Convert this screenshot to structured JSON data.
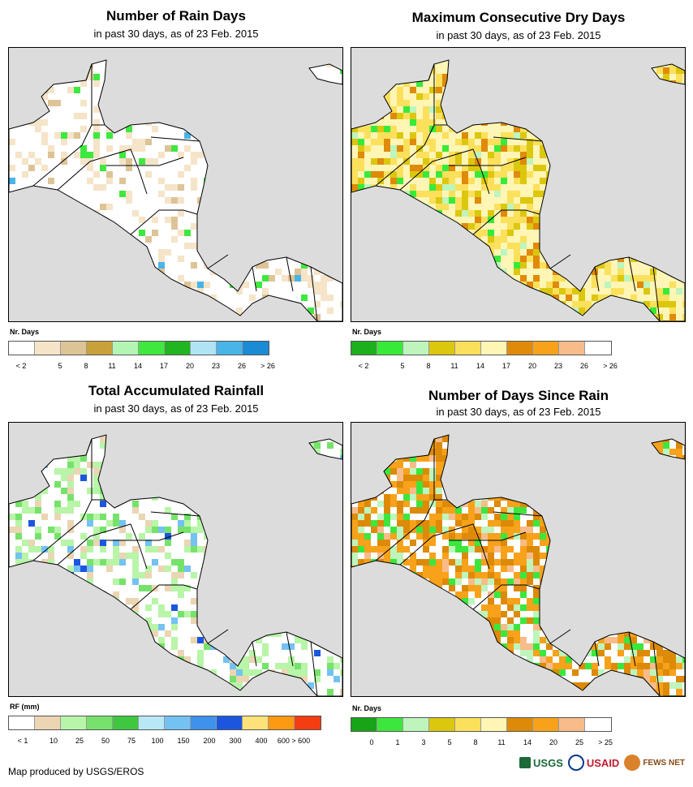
{
  "panels": [
    {
      "id": "rain-days",
      "title": "Number of Rain Days",
      "subtitle": "in past 30 days, as of 23 Feb. 2015",
      "legend_title": "Nr. Days",
      "legend_colors": [
        "#ffffff",
        "#f5e4c8",
        "#ddc497",
        "#c9a13a",
        "#b3f5b3",
        "#3fe83f",
        "#21b521",
        "#b0e4f5",
        "#49b4e7",
        "#1a8bd4"
      ],
      "legend_labels": [
        "< 2",
        "5",
        "8",
        "11",
        "14",
        "17",
        "20",
        "23",
        "26",
        "> 26"
      ],
      "scheme": "rain"
    },
    {
      "id": "dry-days",
      "title": "Maximum Consecutive Dry Days",
      "subtitle": "in past 30 days, as of 23 Feb. 2015",
      "legend_title": "Nr. Days",
      "legend_colors": [
        "#1db01d",
        "#38ea38",
        "#bdf5bd",
        "#dcc70f",
        "#fbe05c",
        "#fff5b5",
        "#e08a0a",
        "#f7a21a",
        "#f8bc8a",
        "#ffffff"
      ],
      "legend_labels": [
        "< 2",
        "5",
        "8",
        "11",
        "14",
        "17",
        "20",
        "23",
        "26",
        "> 26"
      ],
      "scheme": "dry"
    },
    {
      "id": "rainfall",
      "title": "Total Accumulated Rainfall",
      "subtitle": "in past 30 days, as of 23 Feb. 2015",
      "legend_title": "RF (mm)",
      "legend_colors": [
        "#ffffff",
        "#ebd5b3",
        "#b8f5a8",
        "#77e26b",
        "#3fc83f",
        "#b8e8f5",
        "#74c2f2",
        "#3d92ec",
        "#1c56de",
        "#fde27a",
        "#fc9a12",
        "#f53d12"
      ],
      "legend_labels": [
        "< 1",
        "10",
        "25",
        "50",
        "75",
        "100",
        "150",
        "200",
        "300",
        "400",
        "600 > 600"
      ],
      "scheme": "rf"
    },
    {
      "id": "since-rain",
      "title": "Number of Days Since Rain",
      "subtitle": "in past 30 days, as of 23 Feb. 2015",
      "legend_title": "Nr. Days",
      "legend_colors": [
        "#17a417",
        "#3de63d",
        "#bdf5bd",
        "#dcc70f",
        "#fbe05c",
        "#fff5b5",
        "#dd8a08",
        "#f7a21a",
        "#f8bc8a",
        "#ffffff"
      ],
      "legend_labels": [
        "0",
        "1",
        "3",
        "5",
        "8",
        "11",
        "14",
        "20",
        "25",
        "> 25"
      ],
      "scheme": "since"
    }
  ],
  "footer": "Map produced by USGS/EROS",
  "logos": [
    "USGS",
    "USAID",
    "FEWS NET"
  ],
  "colors": {
    "background": "#dcdcdc",
    "land": "#ffffff",
    "border": "#000000"
  }
}
